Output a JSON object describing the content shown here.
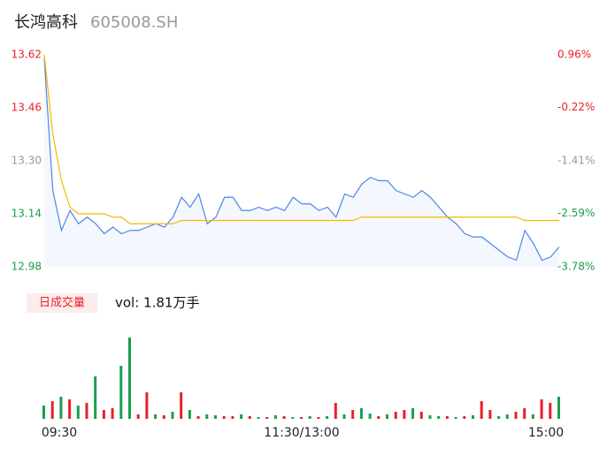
{
  "chart_data": [
    {
      "type": "line",
      "title": "长鸿高科",
      "subtitle": "605008.SH",
      "x": [
        0,
        4,
        8,
        12,
        16,
        20,
        24,
        28,
        32,
        36,
        40,
        44,
        48,
        52,
        56,
        60,
        64,
        68,
        72,
        76,
        80,
        84,
        88,
        92,
        96,
        100,
        104,
        108,
        112,
        116,
        120,
        124,
        128,
        132,
        136,
        140,
        144,
        148,
        152,
        156,
        160,
        164,
        168,
        172,
        176,
        180,
        184,
        188,
        192,
        196,
        200,
        204,
        208,
        212,
        216,
        220,
        224,
        228,
        232,
        236,
        240
      ],
      "xlim": [
        0,
        240
      ],
      "xticks": [
        {
          "value": 0,
          "label": "09:30"
        },
        {
          "value": 120,
          "label": "11:30/13:00"
        },
        {
          "value": 240,
          "label": "15:00"
        }
      ],
      "ylim": [
        12.98,
        13.62
      ],
      "yticks": [
        12.98,
        13.14,
        {
          "value": 13.3,
          "label": "13.30"
        },
        13.46,
        13.62
      ],
      "y2lim": [
        -3.78,
        0.96
      ],
      "y2ticks": [
        {
          "value": -3.78,
          "label": "-3.78%"
        },
        {
          "value": -2.59,
          "label": "-2.59%"
        },
        {
          "value": -1.41,
          "label": "-1.41%"
        },
        {
          "value": -0.22,
          "label": "-0.22%"
        },
        {
          "value": 0.96,
          "label": "0.96%"
        }
      ],
      "tick_colors": [
        "#1a9e4b",
        "#1a9e4b",
        "#999999",
        "#e8202a",
        "#e8202a"
      ],
      "series": [
        {
          "color": "#4a86e8",
          "area": "#f4f7fd",
          "values": [
            13.61,
            13.21,
            13.09,
            13.15,
            13.11,
            13.13,
            13.11,
            13.08,
            13.1,
            13.08,
            13.09,
            13.09,
            13.1,
            13.11,
            13.1,
            13.13,
            13.19,
            13.16,
            13.2,
            13.11,
            13.13,
            13.19,
            13.19,
            13.15,
            13.15,
            13.16,
            13.15,
            13.16,
            13.15,
            13.19,
            13.17,
            13.17,
            13.15,
            13.16,
            13.13,
            13.2,
            13.19,
            13.23,
            13.25,
            13.24,
            13.24,
            13.21,
            13.2,
            13.19,
            13.21,
            13.19,
            13.16,
            13.13,
            13.11,
            13.08,
            13.07,
            13.07,
            13.05,
            13.03,
            13.01,
            13.0,
            13.09,
            13.05,
            13.0,
            13.01,
            13.04
          ]
        },
        {
          "color": "#f5b800",
          "values": [
            13.62,
            13.38,
            13.24,
            13.16,
            13.14,
            13.14,
            13.14,
            13.14,
            13.13,
            13.13,
            13.11,
            13.11,
            13.11,
            13.11,
            13.11,
            13.11,
            13.12,
            13.12,
            13.12,
            13.12,
            13.12,
            13.12,
            13.12,
            13.12,
            13.12,
            13.12,
            13.12,
            13.12,
            13.12,
            13.12,
            13.12,
            13.12,
            13.12,
            13.12,
            13.12,
            13.12,
            13.12,
            13.13,
            13.13,
            13.13,
            13.13,
            13.13,
            13.13,
            13.13,
            13.13,
            13.13,
            13.13,
            13.13,
            13.13,
            13.13,
            13.13,
            13.13,
            13.13,
            13.13,
            13.13,
            13.13,
            13.12,
            13.12,
            13.12,
            13.12,
            13.12
          ]
        }
      ]
    },
    {
      "type": "bar",
      "title": "日成交量",
      "annotation": "vol: 1.81万手",
      "x": [
        0,
        4,
        8,
        12,
        16,
        20,
        24,
        28,
        32,
        36,
        40,
        44,
        48,
        52,
        56,
        60,
        64,
        68,
        72,
        76,
        80,
        84,
        88,
        92,
        96,
        100,
        104,
        108,
        112,
        116,
        120,
        124,
        128,
        132,
        136,
        140,
        144,
        148,
        152,
        156,
        160,
        164,
        168,
        172,
        176,
        180,
        184,
        188,
        192,
        196,
        200,
        204,
        208,
        212,
        216,
        220,
        224,
        228,
        232,
        236,
        240
      ],
      "values": [
        15,
        20,
        25,
        22,
        15,
        18,
        48,
        10,
        12,
        60,
        92,
        5,
        30,
        5,
        4,
        8,
        30,
        10,
        3,
        5,
        4,
        3,
        3,
        5,
        3,
        2,
        2,
        4,
        3,
        2,
        2,
        3,
        2,
        3,
        18,
        5,
        10,
        12,
        6,
        3,
        5,
        8,
        10,
        12,
        8,
        4,
        3,
        3,
        2,
        3,
        4,
        20,
        10,
        3,
        5,
        8,
        12,
        5,
        22,
        18,
        25
      ],
      "colors": [
        "#1a9e4b",
        "#e8202a",
        "#1a9e4b",
        "#e8202a",
        "#1a9e4b",
        "#e8202a",
        "#1a9e4b",
        "#e8202a",
        "#e8202a",
        "#1a9e4b",
        "#1a9e4b",
        "#e8202a",
        "#e8202a",
        "#1a9e4b",
        "#e8202a",
        "#1a9e4b",
        "#e8202a",
        "#1a9e4b",
        "#e8202a",
        "#1a9e4b",
        "#1a9e4b",
        "#e8202a",
        "#e8202a",
        "#1a9e4b",
        "#e8202a",
        "#1a9e4b",
        "#e8202a",
        "#1a9e4b",
        "#e8202a",
        "#1a9e4b",
        "#e8202a",
        "#1a9e4b",
        "#e8202a",
        "#1a9e4b",
        "#e8202a",
        "#1a9e4b",
        "#e8202a",
        "#1a9e4b",
        "#1a9e4b",
        "#e8202a",
        "#1a9e4b",
        "#e8202a",
        "#e8202a",
        "#1a9e4b",
        "#e8202a",
        "#1a9e4b",
        "#1a9e4b",
        "#e8202a",
        "#1a9e4b",
        "#e8202a",
        "#1a9e4b",
        "#e8202a",
        "#e8202a",
        "#1a9e4b",
        "#1a9e4b",
        "#e8202a",
        "#e8202a",
        "#1a9e4b",
        "#e8202a",
        "#e8202a",
        "#1a9e4b"
      ]
    }
  ]
}
